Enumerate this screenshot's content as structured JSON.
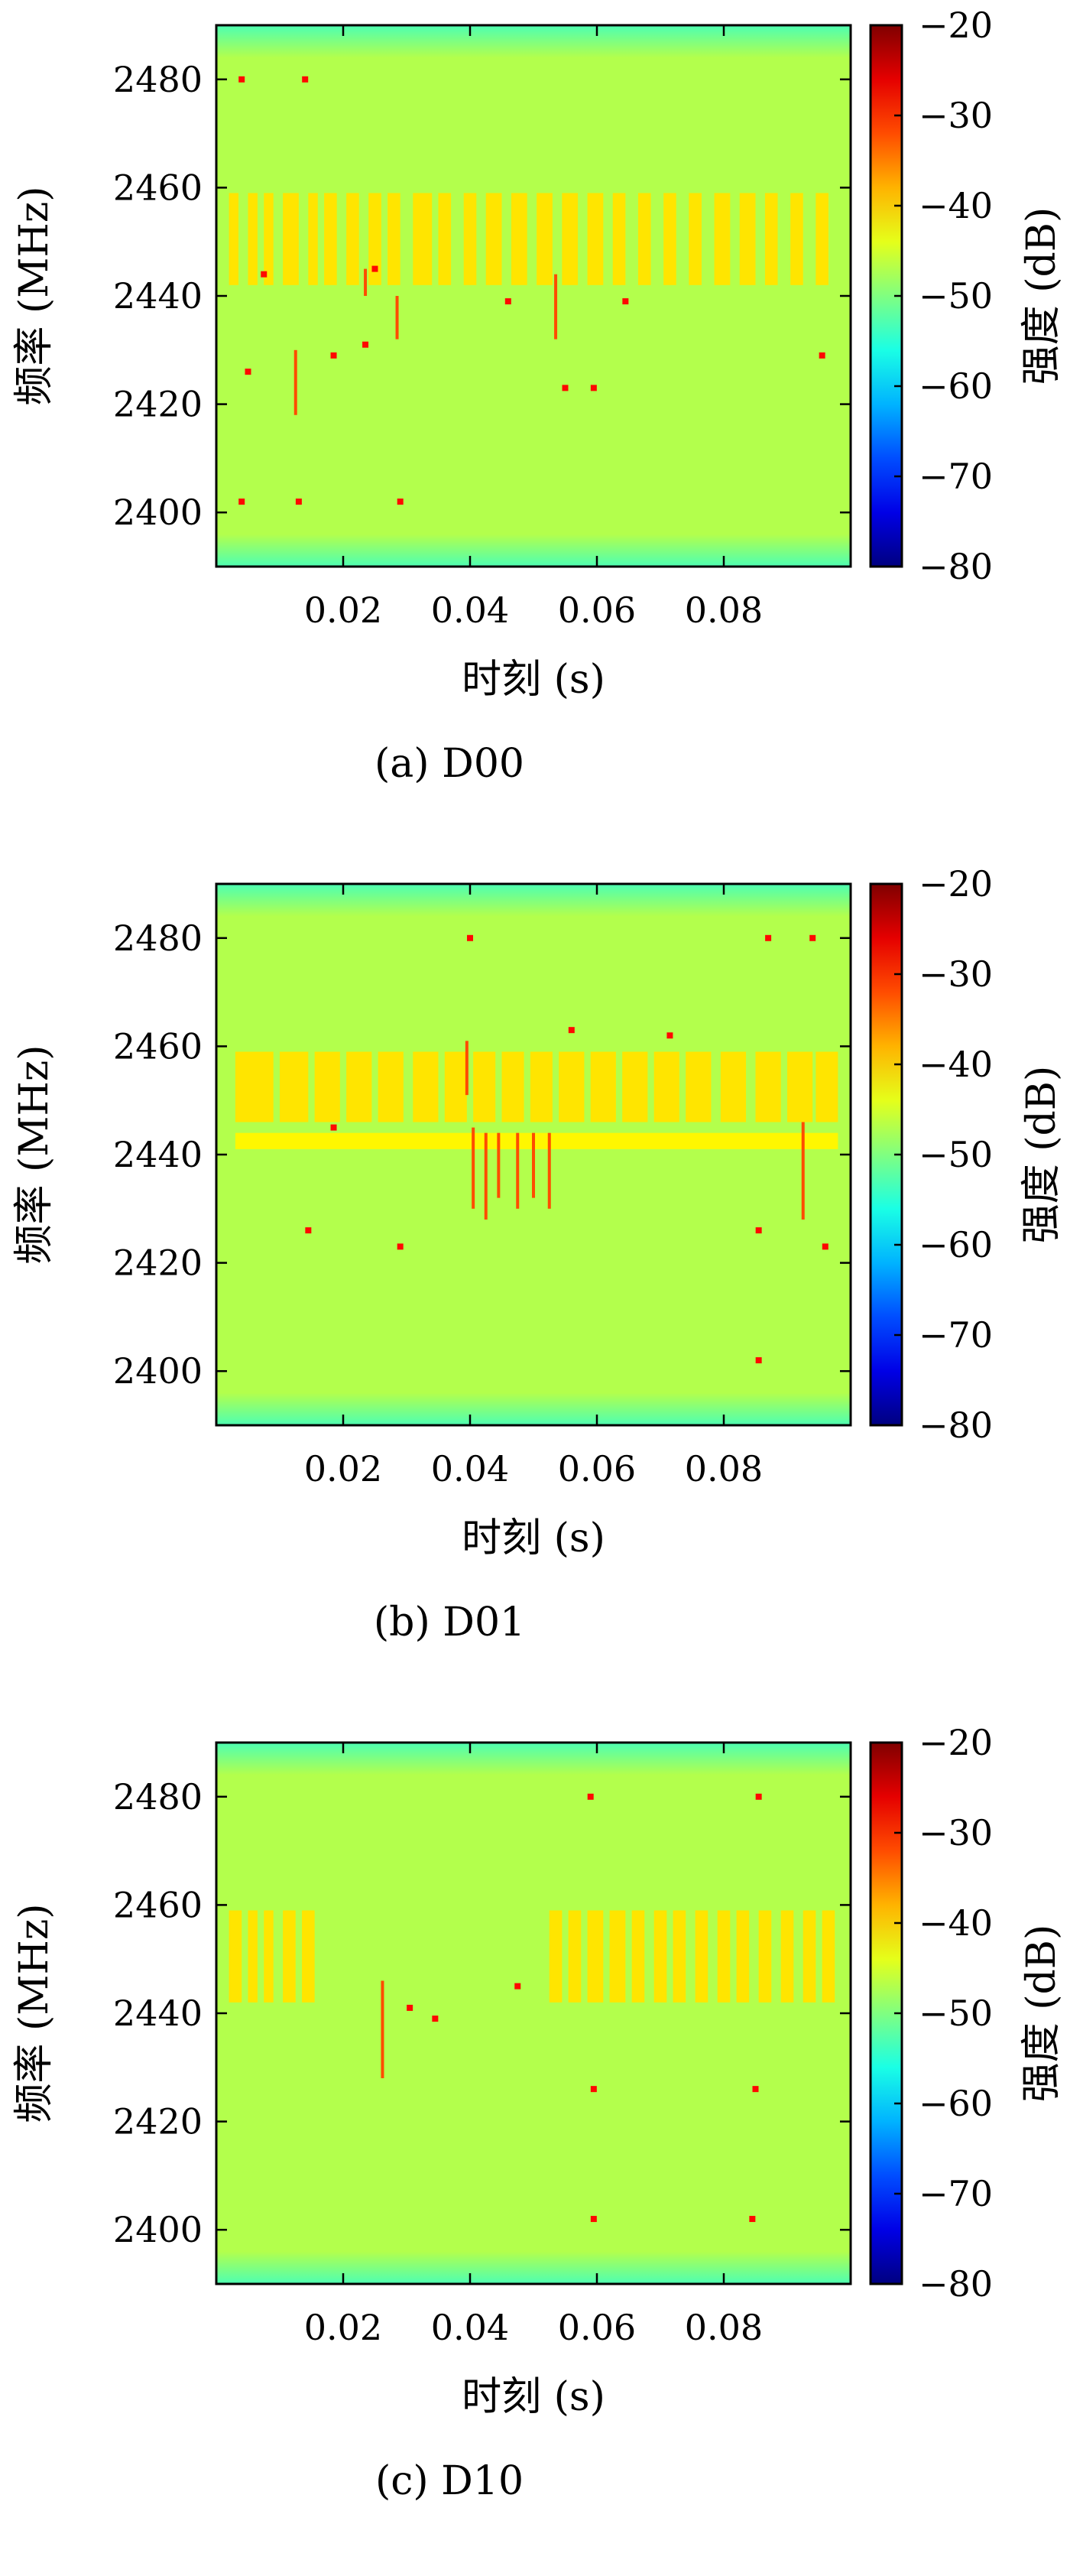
{
  "chart_data": [
    {
      "type": "heatmap",
      "caption": "(a) D00",
      "xlabel": "时刻 (s)",
      "ylabel": "频率 (MHz)",
      "colorbar_label": "强度 (dB)",
      "xlim": [
        0.0,
        0.1
      ],
      "ylim": [
        2390,
        2490
      ],
      "clim": [
        -80,
        -20
      ],
      "xticks": [
        0.02,
        0.04,
        0.06,
        0.08
      ],
      "xtick_labels": [
        "0.02",
        "0.04",
        "0.06",
        "0.08"
      ],
      "yticks": [
        2400,
        2420,
        2440,
        2460,
        2480
      ],
      "ytick_labels": [
        "2400",
        "2420",
        "2440",
        "2460",
        "2480"
      ],
      "cticks": [
        -80,
        -70,
        -60,
        -50,
        -40,
        -30,
        -20
      ],
      "ctick_labels": [
        "−80",
        "−70",
        "−60",
        "−50",
        "−40",
        "−30",
        "−20"
      ],
      "colormap": "jet",
      "background_level": -47,
      "edge_level": -53,
      "bursts": [
        {
          "band": [
            2442,
            2459
          ],
          "level": -41,
          "t": [
            0.002,
            0.0035
          ]
        },
        {
          "band": [
            2442,
            2459
          ],
          "level": -41,
          "t": [
            0.005,
            0.0065
          ]
        },
        {
          "band": [
            2442,
            2459
          ],
          "level": -41,
          "t": [
            0.0075,
            0.009
          ]
        },
        {
          "band": [
            2442,
            2459
          ],
          "level": -41,
          "t": [
            0.0105,
            0.013
          ]
        },
        {
          "band": [
            2442,
            2459
          ],
          "level": -41,
          "t": [
            0.0145,
            0.016
          ]
        },
        {
          "band": [
            2442,
            2459
          ],
          "level": -41,
          "t": [
            0.017,
            0.019
          ]
        },
        {
          "band": [
            2442,
            2459
          ],
          "level": -41,
          "t": [
            0.0205,
            0.0225
          ]
        },
        {
          "band": [
            2442,
            2459
          ],
          "level": -41,
          "t": [
            0.024,
            0.026
          ]
        },
        {
          "band": [
            2442,
            2459
          ],
          "level": -41,
          "t": [
            0.027,
            0.029
          ]
        },
        {
          "band": [
            2442,
            2459
          ],
          "level": -41,
          "t": [
            0.031,
            0.034
          ]
        },
        {
          "band": [
            2442,
            2459
          ],
          "level": -41,
          "t": [
            0.035,
            0.037
          ]
        },
        {
          "band": [
            2442,
            2459
          ],
          "level": -41,
          "t": [
            0.039,
            0.041
          ]
        },
        {
          "band": [
            2442,
            2459
          ],
          "level": -41,
          "t": [
            0.0425,
            0.045
          ]
        },
        {
          "band": [
            2442,
            2459
          ],
          "level": -41,
          "t": [
            0.0465,
            0.049
          ]
        },
        {
          "band": [
            2442,
            2459
          ],
          "level": -41,
          "t": [
            0.0505,
            0.053
          ]
        },
        {
          "band": [
            2442,
            2459
          ],
          "level": -41,
          "t": [
            0.0545,
            0.057
          ]
        },
        {
          "band": [
            2442,
            2459
          ],
          "level": -41,
          "t": [
            0.0585,
            0.061
          ]
        },
        {
          "band": [
            2442,
            2459
          ],
          "level": -41,
          "t": [
            0.0625,
            0.0645
          ]
        },
        {
          "band": [
            2442,
            2459
          ],
          "level": -41,
          "t": [
            0.0665,
            0.0685
          ]
        },
        {
          "band": [
            2442,
            2459
          ],
          "level": -41,
          "t": [
            0.0705,
            0.0725
          ]
        },
        {
          "band": [
            2442,
            2459
          ],
          "level": -41,
          "t": [
            0.0745,
            0.0765
          ]
        },
        {
          "band": [
            2442,
            2459
          ],
          "level": -41,
          "t": [
            0.0785,
            0.081
          ]
        },
        {
          "band": [
            2442,
            2459
          ],
          "level": -41,
          "t": [
            0.0825,
            0.085
          ]
        },
        {
          "band": [
            2442,
            2459
          ],
          "level": -41,
          "t": [
            0.0865,
            0.0885
          ]
        },
        {
          "band": [
            2442,
            2459
          ],
          "level": -41,
          "t": [
            0.0905,
            0.0925
          ]
        },
        {
          "band": [
            2442,
            2459
          ],
          "level": -41,
          "t": [
            0.0945,
            0.0965
          ]
        }
      ],
      "spikes": [
        {
          "t": 0.0125,
          "f": [
            2418,
            2430
          ]
        },
        {
          "t": 0.0535,
          "f": [
            2432,
            2444
          ]
        },
        {
          "t": 0.0235,
          "f": [
            2440,
            2445
          ]
        },
        {
          "t": 0.0285,
          "f": [
            2432,
            2440
          ]
        }
      ],
      "dots": [
        {
          "t": 0.004,
          "f": 2480
        },
        {
          "t": 0.014,
          "f": 2480
        },
        {
          "t": 0.004,
          "f": 2402
        },
        {
          "t": 0.013,
          "f": 2402
        },
        {
          "t": 0.029,
          "f": 2402
        },
        {
          "t": 0.005,
          "f": 2426
        },
        {
          "t": 0.0185,
          "f": 2429
        },
        {
          "t": 0.0235,
          "f": 2431
        },
        {
          "t": 0.046,
          "f": 2439
        },
        {
          "t": 0.055,
          "f": 2423
        },
        {
          "t": 0.0595,
          "f": 2423
        },
        {
          "t": 0.0645,
          "f": 2439
        },
        {
          "t": 0.0955,
          "f": 2429
        },
        {
          "t": 0.0075,
          "f": 2444
        },
        {
          "t": 0.025,
          "f": 2445
        }
      ]
    },
    {
      "type": "heatmap",
      "caption": "(b) D01",
      "xlabel": "时刻 (s)",
      "ylabel": "频率 (MHz)",
      "colorbar_label": "强度 (dB)",
      "xlim": [
        0.0,
        0.1
      ],
      "ylim": [
        2390,
        2490
      ],
      "clim": [
        -80,
        -20
      ],
      "xticks": [
        0.02,
        0.04,
        0.06,
        0.08
      ],
      "xtick_labels": [
        "0.02",
        "0.04",
        "0.06",
        "0.08"
      ],
      "yticks": [
        2400,
        2420,
        2440,
        2460,
        2480
      ],
      "ytick_labels": [
        "2400",
        "2420",
        "2440",
        "2460",
        "2480"
      ],
      "cticks": [
        -80,
        -70,
        -60,
        -50,
        -40,
        -30,
        -20
      ],
      "ctick_labels": [
        "−80",
        "−70",
        "−60",
        "−50",
        "−40",
        "−30",
        "−20"
      ],
      "colormap": "jet",
      "background_level": -47,
      "edge_level": -53,
      "bursts": [
        {
          "band": [
            2446,
            2459
          ],
          "level": -41,
          "t": [
            0.003,
            0.009
          ]
        },
        {
          "band": [
            2446,
            2459
          ],
          "level": -41,
          "t": [
            0.01,
            0.0145
          ]
        },
        {
          "band": [
            2446,
            2459
          ],
          "level": -41,
          "t": [
            0.0155,
            0.0195
          ]
        },
        {
          "band": [
            2446,
            2459
          ],
          "level": -41,
          "t": [
            0.0205,
            0.0245
          ]
        },
        {
          "band": [
            2446,
            2459
          ],
          "level": -41,
          "t": [
            0.0255,
            0.0295
          ]
        },
        {
          "band": [
            2446,
            2459
          ],
          "level": -41,
          "t": [
            0.031,
            0.035
          ]
        },
        {
          "band": [
            2446,
            2459
          ],
          "level": -41,
          "t": [
            0.036,
            0.0395
          ]
        },
        {
          "band": [
            2446,
            2459
          ],
          "level": -41,
          "t": [
            0.0405,
            0.044
          ]
        },
        {
          "band": [
            2446,
            2459
          ],
          "level": -41,
          "t": [
            0.045,
            0.0485
          ]
        },
        {
          "band": [
            2446,
            2459
          ],
          "level": -41,
          "t": [
            0.0495,
            0.053
          ]
        },
        {
          "band": [
            2446,
            2459
          ],
          "level": -41,
          "t": [
            0.054,
            0.058
          ]
        },
        {
          "band": [
            2446,
            2459
          ],
          "level": -41,
          "t": [
            0.059,
            0.063
          ]
        },
        {
          "band": [
            2446,
            2459
          ],
          "level": -41,
          "t": [
            0.064,
            0.068
          ]
        },
        {
          "band": [
            2446,
            2459
          ],
          "level": -41,
          "t": [
            0.069,
            0.073
          ]
        },
        {
          "band": [
            2446,
            2459
          ],
          "level": -41,
          "t": [
            0.074,
            0.078
          ]
        },
        {
          "band": [
            2446,
            2459
          ],
          "level": -41,
          "t": [
            0.0795,
            0.0835
          ]
        },
        {
          "band": [
            2446,
            2459
          ],
          "level": -41,
          "t": [
            0.085,
            0.089
          ]
        },
        {
          "band": [
            2446,
            2459
          ],
          "level": -41,
          "t": [
            0.09,
            0.094
          ]
        },
        {
          "band": [
            2446,
            2459
          ],
          "level": -41,
          "t": [
            0.0945,
            0.098
          ]
        },
        {
          "band": [
            2441,
            2444
          ],
          "level": -42,
          "t": [
            0.003,
            0.098
          ]
        }
      ],
      "spikes": [
        {
          "t": 0.0405,
          "f": [
            2430,
            2445
          ]
        },
        {
          "t": 0.0425,
          "f": [
            2428,
            2444
          ]
        },
        {
          "t": 0.0445,
          "f": [
            2432,
            2444
          ]
        },
        {
          "t": 0.0475,
          "f": [
            2430,
            2444
          ]
        },
        {
          "t": 0.05,
          "f": [
            2432,
            2444
          ]
        },
        {
          "t": 0.0525,
          "f": [
            2430,
            2444
          ]
        },
        {
          "t": 0.0925,
          "f": [
            2428,
            2446
          ]
        },
        {
          "t": 0.0395,
          "f": [
            2451,
            2461
          ]
        }
      ],
      "dots": [
        {
          "t": 0.04,
          "f": 2480
        },
        {
          "t": 0.087,
          "f": 2480
        },
        {
          "t": 0.094,
          "f": 2480
        },
        {
          "t": 0.0145,
          "f": 2426
        },
        {
          "t": 0.029,
          "f": 2423
        },
        {
          "t": 0.0855,
          "f": 2402
        },
        {
          "t": 0.0855,
          "f": 2426
        },
        {
          "t": 0.096,
          "f": 2423
        },
        {
          "t": 0.0185,
          "f": 2445
        },
        {
          "t": 0.0715,
          "f": 2462
        },
        {
          "t": 0.056,
          "f": 2463
        }
      ]
    },
    {
      "type": "heatmap",
      "caption": "(c) D10",
      "xlabel": "时刻 (s)",
      "ylabel": "频率 (MHz)",
      "colorbar_label": "强度 (dB)",
      "xlim": [
        0.0,
        0.1
      ],
      "ylim": [
        2390,
        2490
      ],
      "clim": [
        -80,
        -20
      ],
      "xticks": [
        0.02,
        0.04,
        0.06,
        0.08
      ],
      "xtick_labels": [
        "0.02",
        "0.04",
        "0.06",
        "0.08"
      ],
      "yticks": [
        2400,
        2420,
        2440,
        2460,
        2480
      ],
      "ytick_labels": [
        "2400",
        "2420",
        "2440",
        "2460",
        "2480"
      ],
      "cticks": [
        -80,
        -70,
        -60,
        -50,
        -40,
        -30,
        -20
      ],
      "ctick_labels": [
        "−80",
        "−70",
        "−60",
        "−50",
        "−40",
        "−30",
        "−20"
      ],
      "colormap": "jet",
      "background_level": -47,
      "edge_level": -53,
      "bursts": [
        {
          "band": [
            2442,
            2459
          ],
          "level": -41,
          "t": [
            0.002,
            0.004
          ]
        },
        {
          "band": [
            2442,
            2459
          ],
          "level": -41,
          "t": [
            0.005,
            0.0065
          ]
        },
        {
          "band": [
            2442,
            2459
          ],
          "level": -41,
          "t": [
            0.0075,
            0.009
          ]
        },
        {
          "band": [
            2442,
            2459
          ],
          "level": -41,
          "t": [
            0.0105,
            0.0125
          ]
        },
        {
          "band": [
            2442,
            2459
          ],
          "level": -41,
          "t": [
            0.0135,
            0.0155
          ]
        },
        {
          "band": [
            2442,
            2459
          ],
          "level": -41,
          "t": [
            0.0525,
            0.0545
          ]
        },
        {
          "band": [
            2442,
            2459
          ],
          "level": -41,
          "t": [
            0.0555,
            0.0575
          ]
        },
        {
          "band": [
            2442,
            2459
          ],
          "level": -41,
          "t": [
            0.0585,
            0.061
          ]
        },
        {
          "band": [
            2442,
            2459
          ],
          "level": -41,
          "t": [
            0.062,
            0.0645
          ]
        },
        {
          "band": [
            2442,
            2459
          ],
          "level": -41,
          "t": [
            0.0655,
            0.0675
          ]
        },
        {
          "band": [
            2442,
            2459
          ],
          "level": -41,
          "t": [
            0.069,
            0.071
          ]
        },
        {
          "band": [
            2442,
            2459
          ],
          "level": -41,
          "t": [
            0.072,
            0.074
          ]
        },
        {
          "band": [
            2442,
            2459
          ],
          "level": -41,
          "t": [
            0.0755,
            0.0775
          ]
        },
        {
          "band": [
            2442,
            2459
          ],
          "level": -41,
          "t": [
            0.079,
            0.081
          ]
        },
        {
          "band": [
            2442,
            2459
          ],
          "level": -41,
          "t": [
            0.082,
            0.084
          ]
        },
        {
          "band": [
            2442,
            2459
          ],
          "level": -41,
          "t": [
            0.0855,
            0.0875
          ]
        },
        {
          "band": [
            2442,
            2459
          ],
          "level": -41,
          "t": [
            0.089,
            0.091
          ]
        },
        {
          "band": [
            2442,
            2459
          ],
          "level": -41,
          "t": [
            0.0925,
            0.0945
          ]
        },
        {
          "band": [
            2442,
            2459
          ],
          "level": -41,
          "t": [
            0.0955,
            0.0975
          ]
        }
      ],
      "spikes": [
        {
          "t": 0.0262,
          "f": [
            2428,
            2446
          ]
        }
      ],
      "dots": [
        {
          "t": 0.059,
          "f": 2480
        },
        {
          "t": 0.0855,
          "f": 2480
        },
        {
          "t": 0.0595,
          "f": 2426
        },
        {
          "t": 0.085,
          "f": 2426
        },
        {
          "t": 0.0845,
          "f": 2402
        },
        {
          "t": 0.0475,
          "f": 2445
        },
        {
          "t": 0.0305,
          "f": 2441
        },
        {
          "t": 0.0345,
          "f": 2439
        },
        {
          "t": 0.0595,
          "f": 2402
        }
      ]
    }
  ]
}
